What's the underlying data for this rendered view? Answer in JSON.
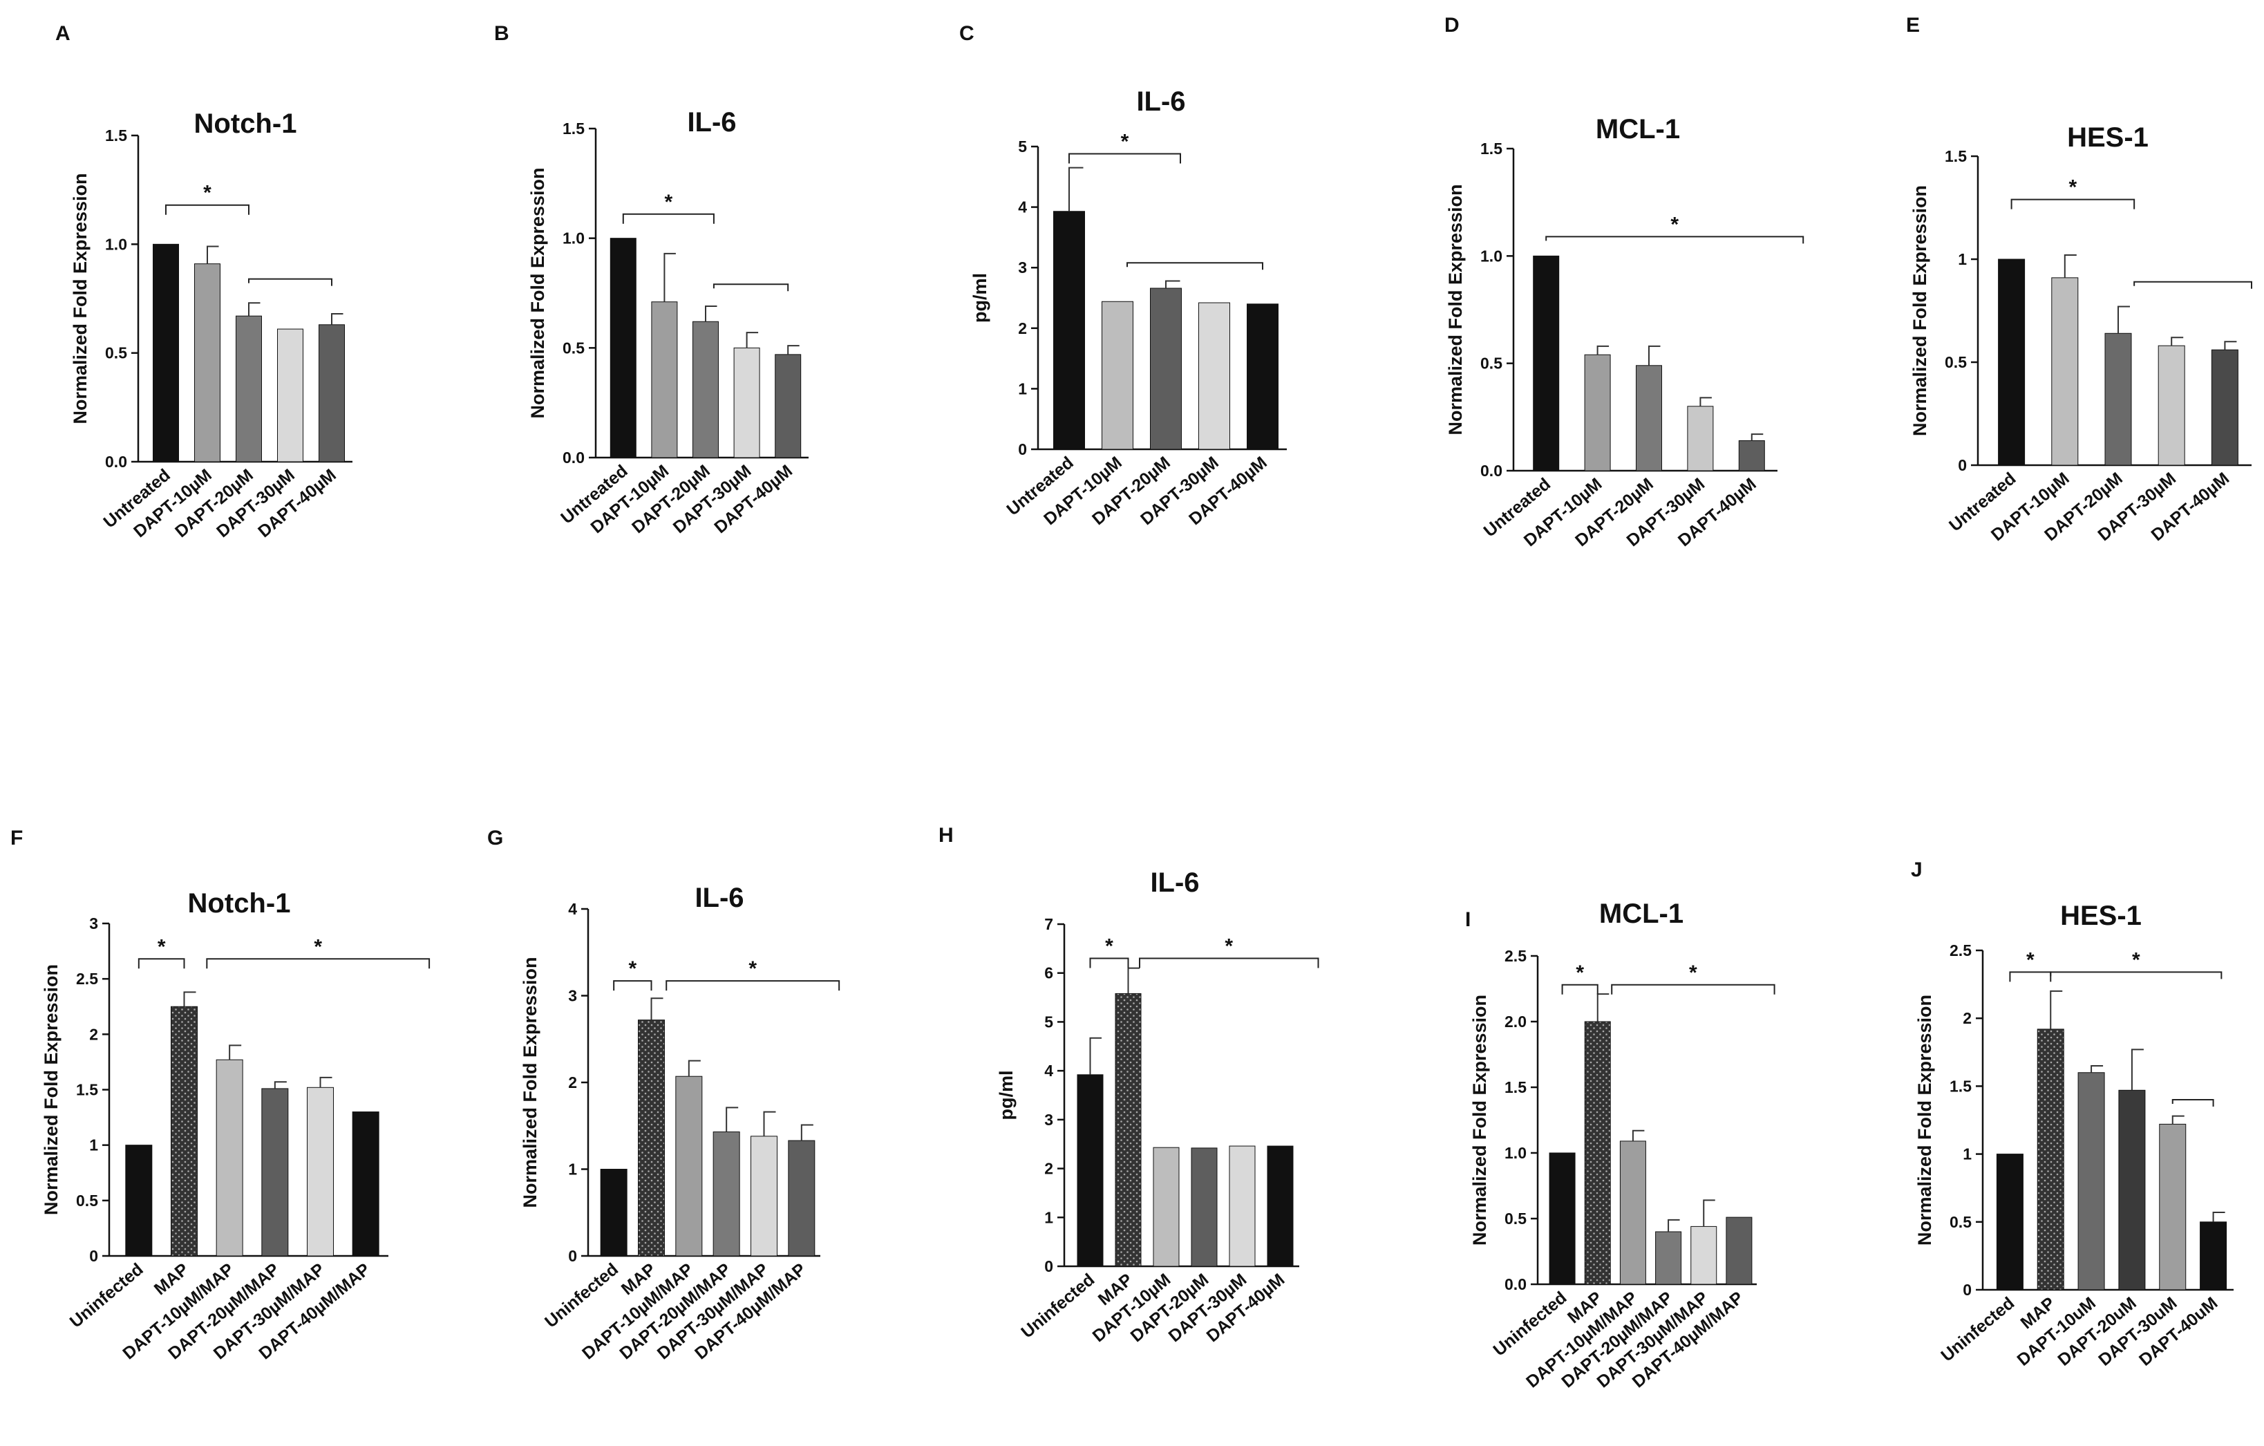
{
  "chart_data": [
    {
      "letter": "A",
      "title": "Notch-1",
      "type": "bar",
      "ylabel": "Normalized Fold Expression",
      "categories": [
        "Untreated",
        "DAPT-10µM",
        "DAPT-20µM",
        "DAPT-30µM",
        "DAPT-40µM"
      ],
      "values": [
        1.0,
        0.91,
        0.67,
        0.61,
        0.63
      ],
      "errors": [
        0,
        0.08,
        0.06,
        0,
        0.05
      ],
      "colors": [
        "#111111",
        "#9e9e9e",
        "#7a7a7a",
        "#d9d9d9",
        "#5e5e5e"
      ],
      "ylim": [
        0,
        1.5
      ],
      "ticks": [
        0,
        0.5,
        1.0,
        1.5
      ],
      "tick_labels": [
        "0.0",
        "0.5",
        "1.0",
        "1.5"
      ],
      "annotations": [
        {
          "type": "bracket",
          "label": "*",
          "from": 0,
          "to": 2,
          "y": 1.18
        },
        {
          "type": "line",
          "from": 2,
          "to": 4,
          "y": 0.84
        }
      ]
    },
    {
      "letter": "B",
      "title": "IL-6",
      "type": "bar",
      "ylabel": "Normalized Fold Expression",
      "categories": [
        "Untreated",
        "DAPT-10µM",
        "DAPT-20µM",
        "DAPT-30µM",
        "DAPT-40µM"
      ],
      "values": [
        1.0,
        0.71,
        0.62,
        0.5,
        0.47
      ],
      "errors": [
        0,
        0.22,
        0.07,
        0.07,
        0.04
      ],
      "colors": [
        "#111111",
        "#9e9e9e",
        "#7a7a7a",
        "#d9d9d9",
        "#5e5e5e"
      ],
      "ylim": [
        0,
        1.5
      ],
      "ticks": [
        0,
        0.5,
        1.0,
        1.5
      ],
      "tick_labels": [
        "0.0",
        "0.5",
        "1.0",
        "1.5"
      ],
      "annotations": [
        {
          "type": "bracket",
          "label": "*",
          "from": 0,
          "to": 2.2,
          "y": 1.11
        },
        {
          "type": "line",
          "from": 2.2,
          "to": 4,
          "y": 0.79
        }
      ]
    },
    {
      "letter": "C",
      "title": "IL-6",
      "type": "bar",
      "ylabel": "pg/ml",
      "categories": [
        "Untreated",
        "DAPT-10µM",
        "DAPT-20µM",
        "DAPT-30µM",
        "DAPT-40µM"
      ],
      "values": [
        3.93,
        2.44,
        2.66,
        2.42,
        2.4
      ],
      "errors": [
        0.72,
        0,
        0.12,
        0,
        0
      ],
      "colors": [
        "#111111",
        "#bdbdbd",
        "#5e5e5e",
        "#d9d9d9",
        "#111111"
      ],
      "ylim": [
        0,
        5
      ],
      "ticks": [
        0,
        1,
        2,
        3,
        4,
        5
      ],
      "tick_labels": [
        "0",
        "1",
        "2",
        "3",
        "4",
        "5"
      ],
      "annotations": [
        {
          "type": "bracket",
          "label": "*",
          "from": 0,
          "to": 2.3,
          "y": 4.88
        },
        {
          "type": "line",
          "from": 1.2,
          "to": 4,
          "y": 3.08
        }
      ]
    },
    {
      "letter": "D",
      "title": "MCL-1",
      "type": "bar",
      "ylabel": "Normalized Fold Expression",
      "categories": [
        "Untreated",
        "DAPT-10µM",
        "DAPT-20µM",
        "DAPT-30µM",
        "DAPT-40µM"
      ],
      "values": [
        1.0,
        0.54,
        0.49,
        0.3,
        0.14
      ],
      "errors": [
        0,
        0.04,
        0.09,
        0.04,
        0.03
      ],
      "colors": [
        "#111111",
        "#9e9e9e",
        "#7a7a7a",
        "#c8c8c8",
        "#5e5e5e"
      ],
      "ylim": [
        0,
        1.5
      ],
      "ticks": [
        0,
        0.5,
        1.0,
        1.5
      ],
      "tick_labels": [
        "0.0",
        "0.5",
        "1.0",
        "1.5"
      ],
      "annotations": [
        {
          "type": "line",
          "label": "*",
          "from": 0,
          "to": 5,
          "y": 1.09
        }
      ]
    },
    {
      "letter": "E",
      "title": "HES-1",
      "type": "bar",
      "ylabel": "Normalized Fold Expression",
      "categories": [
        "Untreated",
        "DAPT-10µM",
        "DAPT-20µM",
        "DAPT-30µM",
        "DAPT-40µM"
      ],
      "values": [
        1.0,
        0.91,
        0.64,
        0.58,
        0.56
      ],
      "errors": [
        0,
        0.11,
        0.13,
        0.04,
        0.04
      ],
      "colors": [
        "#111111",
        "#bdbdbd",
        "#6a6a6a",
        "#c8c8c8",
        "#4a4a4a"
      ],
      "ylim": [
        0,
        1.5
      ],
      "ticks": [
        0,
        0.5,
        1,
        1.5
      ],
      "tick_labels": [
        "0",
        "0.5",
        "1",
        "1.5"
      ],
      "annotations": [
        {
          "type": "bracket",
          "label": "*",
          "from": 0,
          "to": 2.3,
          "y": 1.29
        },
        {
          "type": "line",
          "from": 2.3,
          "to": 4.5,
          "y": 0.89
        }
      ]
    },
    {
      "letter": "F",
      "title": "Notch-1",
      "type": "bar",
      "ylabel": "Normalized Fold Expression",
      "categories": [
        "Uninfected",
        "MAP",
        "DAPT-10µM/MAP",
        "DAPT-20µM/MAP",
        "DAPT-30µM/MAP",
        "DAPT-40µM/MAP"
      ],
      "values": [
        1.0,
        2.25,
        1.77,
        1.51,
        1.52,
        1.3
      ],
      "errors": [
        0,
        0.13,
        0.13,
        0.06,
        0.09,
        0
      ],
      "colors": [
        "#111111",
        "#333333",
        "#bdbdbd",
        "#5e5e5e",
        "#d9d9d9",
        "#111111"
      ],
      "patterns": [
        null,
        "dots",
        null,
        null,
        null,
        null
      ],
      "ylim": [
        0,
        3
      ],
      "ticks": [
        0,
        0.5,
        1,
        1.5,
        2,
        2.5,
        3
      ],
      "tick_labels": [
        "0",
        "0.5",
        "1",
        "1.5",
        "2",
        "2.5",
        "3"
      ],
      "annotations": [
        {
          "type": "bracket",
          "label": "*",
          "from": 0,
          "to": 1,
          "y": 2.68
        },
        {
          "type": "bracket",
          "label": "*",
          "from": 1.5,
          "to": 6.4,
          "y": 2.68
        }
      ]
    },
    {
      "letter": "G",
      "title": "IL-6",
      "type": "bar",
      "ylabel": "Normalized Fold Expression",
      "categories": [
        "Uninfected",
        "MAP",
        "DAPT-10µM/MAP",
        "DAPT-20µM/MAP",
        "DAPT-30µM/MAP",
        "DAPT-40µM/MAP"
      ],
      "values": [
        1.0,
        2.72,
        2.07,
        1.43,
        1.38,
        1.33
      ],
      "errors": [
        0,
        0.25,
        0.18,
        0.28,
        0.28,
        0.18
      ],
      "colors": [
        "#111111",
        "#333333",
        "#9e9e9e",
        "#7a7a7a",
        "#d9d9d9",
        "#5e5e5e"
      ],
      "patterns": [
        null,
        "dots",
        null,
        null,
        null,
        null
      ],
      "ylim": [
        0,
        4
      ],
      "ticks": [
        0,
        1,
        2,
        3,
        4
      ],
      "tick_labels": [
        "0",
        "1",
        "2",
        "3",
        "4"
      ],
      "annotations": [
        {
          "type": "bracket",
          "label": "*",
          "from": 0,
          "to": 1,
          "y": 3.17
        },
        {
          "type": "bracket",
          "label": "*",
          "from": 1.4,
          "to": 6,
          "y": 3.17
        }
      ]
    },
    {
      "letter": "H",
      "title": "IL-6",
      "type": "bar",
      "ylabel": "pg/ml",
      "categories": [
        "Uninfected",
        "MAP",
        "DAPT-10µM",
        "DAPT-20µM",
        "DAPT-30µM",
        "DAPT-40µM"
      ],
      "values": [
        3.92,
        5.58,
        2.43,
        2.42,
        2.46,
        2.46
      ],
      "errors": [
        0.75,
        0.52,
        0,
        0,
        0,
        0
      ],
      "colors": [
        "#111111",
        "#333333",
        "#bdbdbd",
        "#5e5e5e",
        "#d9d9d9",
        "#111111"
      ],
      "patterns": [
        null,
        "dots",
        null,
        null,
        null,
        null
      ],
      "ylim": [
        0,
        7
      ],
      "ticks": [
        0,
        1,
        2,
        3,
        4,
        5,
        6,
        7
      ],
      "tick_labels": [
        "0",
        "1",
        "2",
        "3",
        "4",
        "5",
        "6",
        "7"
      ],
      "annotations": [
        {
          "type": "bracket",
          "label": "*",
          "from": 0,
          "to": 1,
          "y": 6.3
        },
        {
          "type": "bracket",
          "label": "*",
          "from": 1.3,
          "to": 6,
          "y": 6.3
        }
      ]
    },
    {
      "letter": "I",
      "title": "MCL-1",
      "type": "bar",
      "ylabel": "Normalized Fold Expression",
      "categories": [
        "Uninfected",
        "MAP",
        "DAPT-10µM/MAP",
        "DAPT-20µM/MAP",
        "DAPT-30µM/MAP",
        "DAPT-40µM/MAP"
      ],
      "values": [
        1.0,
        2.0,
        1.09,
        0.4,
        0.44,
        0.51
      ],
      "errors": [
        0,
        0.21,
        0.08,
        0.09,
        0.2,
        0
      ],
      "colors": [
        "#111111",
        "#333333",
        "#9e9e9e",
        "#7a7a7a",
        "#d9d9d9",
        "#5e5e5e"
      ],
      "patterns": [
        null,
        "dots",
        null,
        null,
        null,
        null
      ],
      "ylim": [
        0,
        2.5
      ],
      "ticks": [
        0,
        0.5,
        1.0,
        1.5,
        2.0,
        2.5
      ],
      "tick_labels": [
        "0.0",
        "0.5",
        "1.0",
        "1.5",
        "2.0",
        "2.5"
      ],
      "annotations": [
        {
          "type": "bracket",
          "label": "*",
          "from": 0,
          "to": 1,
          "y": 2.28
        },
        {
          "type": "bracket",
          "label": "*",
          "from": 1.4,
          "to": 6,
          "y": 2.28
        }
      ]
    },
    {
      "letter": "J",
      "title": "HES-1",
      "type": "bar",
      "ylabel": "Normalized Fold Expression",
      "categories": [
        "Uninfected",
        "MAP",
        "DAPT-10uM",
        "DAPT-20uM",
        "DAPT-30uM",
        "DAPT-40uM"
      ],
      "values": [
        1.0,
        1.92,
        1.6,
        1.47,
        1.22,
        0.5
      ],
      "errors": [
        0,
        0.28,
        0.05,
        0.3,
        0.06,
        0.07
      ],
      "colors": [
        "#111111",
        "#333333",
        "#6a6a6a",
        "#3a3a3a",
        "#9e9e9e",
        "#111111"
      ],
      "patterns": [
        null,
        "dots",
        null,
        null,
        null,
        null
      ],
      "ylim": [
        0,
        2.5
      ],
      "ticks": [
        0,
        0.5,
        1,
        1.5,
        2,
        2.5
      ],
      "tick_labels": [
        "0",
        "0.5",
        "1",
        "1.5",
        "2",
        "2.5"
      ],
      "annotations": [
        {
          "type": "bracket",
          "label": "*",
          "from": 0,
          "to": 1,
          "y": 2.34
        },
        {
          "type": "line",
          "label": "*",
          "from": 1,
          "to": 5.2,
          "y": 2.34
        },
        {
          "type": "line",
          "from": 4,
          "to": 5,
          "y": 1.4
        }
      ]
    }
  ]
}
